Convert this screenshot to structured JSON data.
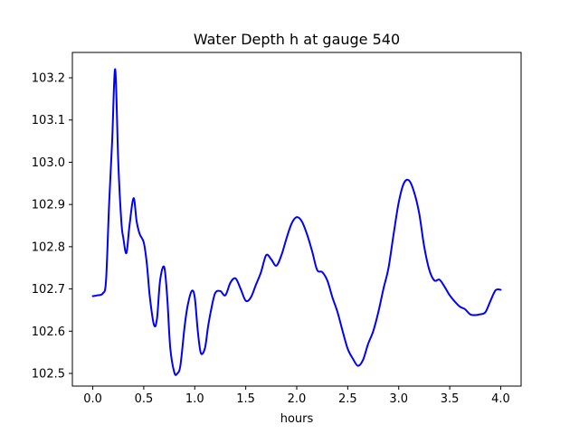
{
  "chart_data": {
    "type": "line",
    "title": "Water Depth h at gauge 540",
    "xlabel": "hours",
    "ylabel": "",
    "xlim": [
      -0.2,
      4.2
    ],
    "ylim": [
      102.47,
      103.26
    ],
    "xticks": [
      0.0,
      0.5,
      1.0,
      1.5,
      2.0,
      2.5,
      3.0,
      3.5,
      4.0
    ],
    "xtick_labels": [
      "0.0",
      "0.5",
      "1.0",
      "1.5",
      "2.0",
      "2.5",
      "3.0",
      "3.5",
      "4.0"
    ],
    "yticks": [
      102.5,
      102.6,
      102.7,
      102.8,
      102.9,
      103.0,
      103.1,
      103.2
    ],
    "ytick_labels": [
      "102.5",
      "102.6",
      "102.7",
      "102.8",
      "102.9",
      "103.0",
      "103.1",
      "103.2"
    ],
    "grid": false,
    "series": [
      {
        "color": "#0000ff",
        "x": [
          0.0,
          0.05,
          0.1,
          0.13,
          0.16,
          0.19,
          0.22,
          0.25,
          0.28,
          0.3,
          0.33,
          0.36,
          0.4,
          0.43,
          0.46,
          0.5,
          0.53,
          0.56,
          0.6,
          0.63,
          0.66,
          0.7,
          0.73,
          0.76,
          0.8,
          0.83,
          0.86,
          0.9,
          0.93,
          0.97,
          1.0,
          1.03,
          1.06,
          1.1,
          1.13,
          1.16,
          1.2,
          1.25,
          1.3,
          1.35,
          1.4,
          1.45,
          1.5,
          1.55,
          1.6,
          1.65,
          1.7,
          1.75,
          1.8,
          1.85,
          1.9,
          1.95,
          2.0,
          2.05,
          2.1,
          2.15,
          2.2,
          2.25,
          2.3,
          2.35,
          2.4,
          2.45,
          2.5,
          2.55,
          2.6,
          2.65,
          2.7,
          2.75,
          2.8,
          2.85,
          2.9,
          2.95,
          3.0,
          3.05,
          3.1,
          3.15,
          3.2,
          3.25,
          3.3,
          3.35,
          3.4,
          3.45,
          3.5,
          3.55,
          3.6,
          3.65,
          3.7,
          3.75,
          3.8,
          3.85,
          3.9,
          3.95,
          4.0
        ],
        "y": [
          102.683,
          102.685,
          102.69,
          102.72,
          102.9,
          103.05,
          103.22,
          103.0,
          102.86,
          102.82,
          102.785,
          102.85,
          102.915,
          102.86,
          102.83,
          102.81,
          102.76,
          102.68,
          102.615,
          102.63,
          102.72,
          102.752,
          102.68,
          102.56,
          102.502,
          102.5,
          102.52,
          102.61,
          102.66,
          102.695,
          102.68,
          102.6,
          102.548,
          102.56,
          102.61,
          102.65,
          102.69,
          102.695,
          102.685,
          102.715,
          102.725,
          102.7,
          102.672,
          102.68,
          102.71,
          102.74,
          102.78,
          102.77,
          102.755,
          102.78,
          102.82,
          102.855,
          102.87,
          102.86,
          102.83,
          102.79,
          102.745,
          102.74,
          102.72,
          102.68,
          102.645,
          102.6,
          102.558,
          102.535,
          102.518,
          102.532,
          102.57,
          102.6,
          102.645,
          102.7,
          102.75,
          102.83,
          102.905,
          102.95,
          102.957,
          102.93,
          102.88,
          102.8,
          102.745,
          102.72,
          102.722,
          102.705,
          102.685,
          102.67,
          102.658,
          102.652,
          102.64,
          102.638,
          102.64,
          102.645,
          102.672,
          102.697,
          102.698
        ]
      }
    ]
  }
}
